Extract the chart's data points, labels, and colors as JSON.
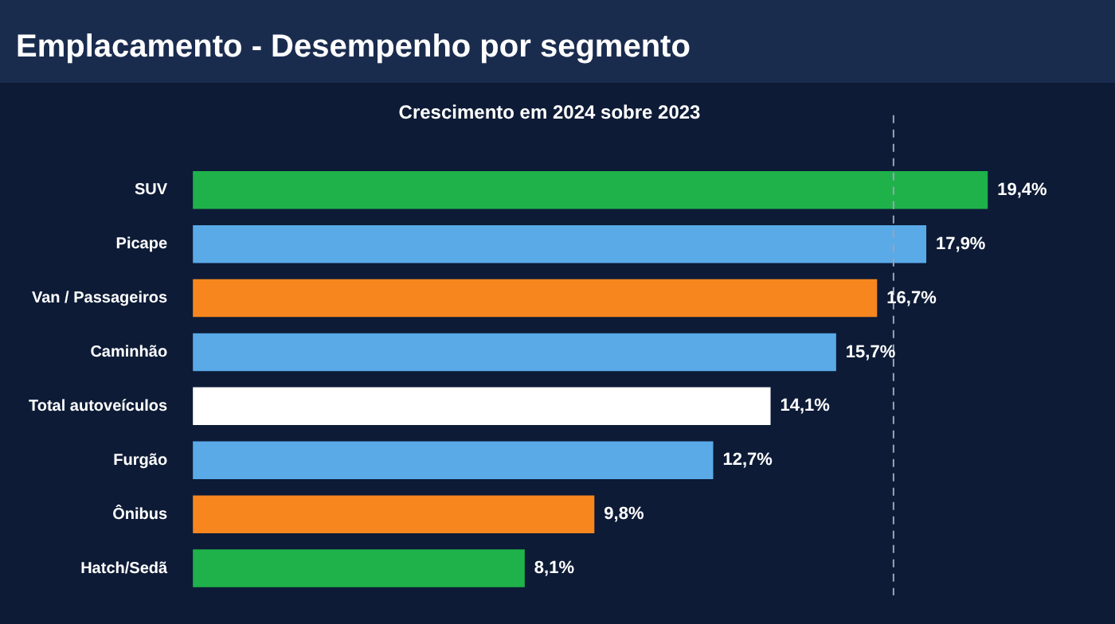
{
  "chart_data": {
    "type": "bar",
    "orientation": "horizontal",
    "title": "Emplacamento - Desempenho por segmento",
    "subtitle": "Crescimento em 2024 sobre 2023",
    "categories": [
      "SUV",
      "Picape",
      "Van / Passageiros",
      "Caminhão",
      "Total autoveículos",
      "Furgão",
      "Ônibus",
      "Hatch/Sedã"
    ],
    "values": [
      19.4,
      17.9,
      16.7,
      15.7,
      14.1,
      12.7,
      9.8,
      8.1
    ],
    "colors": [
      "#1fb24a",
      "#5aaae8",
      "#f7861e",
      "#5aaae8",
      "#ffffff",
      "#5aaae8",
      "#f7861e",
      "#1fb24a"
    ],
    "value_labels": [
      "19,4%",
      "17,9%",
      "16,7%",
      "15,7%",
      "14,1%",
      "12,7%",
      "9,8%",
      "8,1%"
    ],
    "ref_lines": [
      {
        "axis": "x",
        "value": 17.1,
        "color": "#9aa4b4",
        "line_style": "dashed"
      }
    ],
    "legend": false,
    "tick_labels": "y"
  }
}
